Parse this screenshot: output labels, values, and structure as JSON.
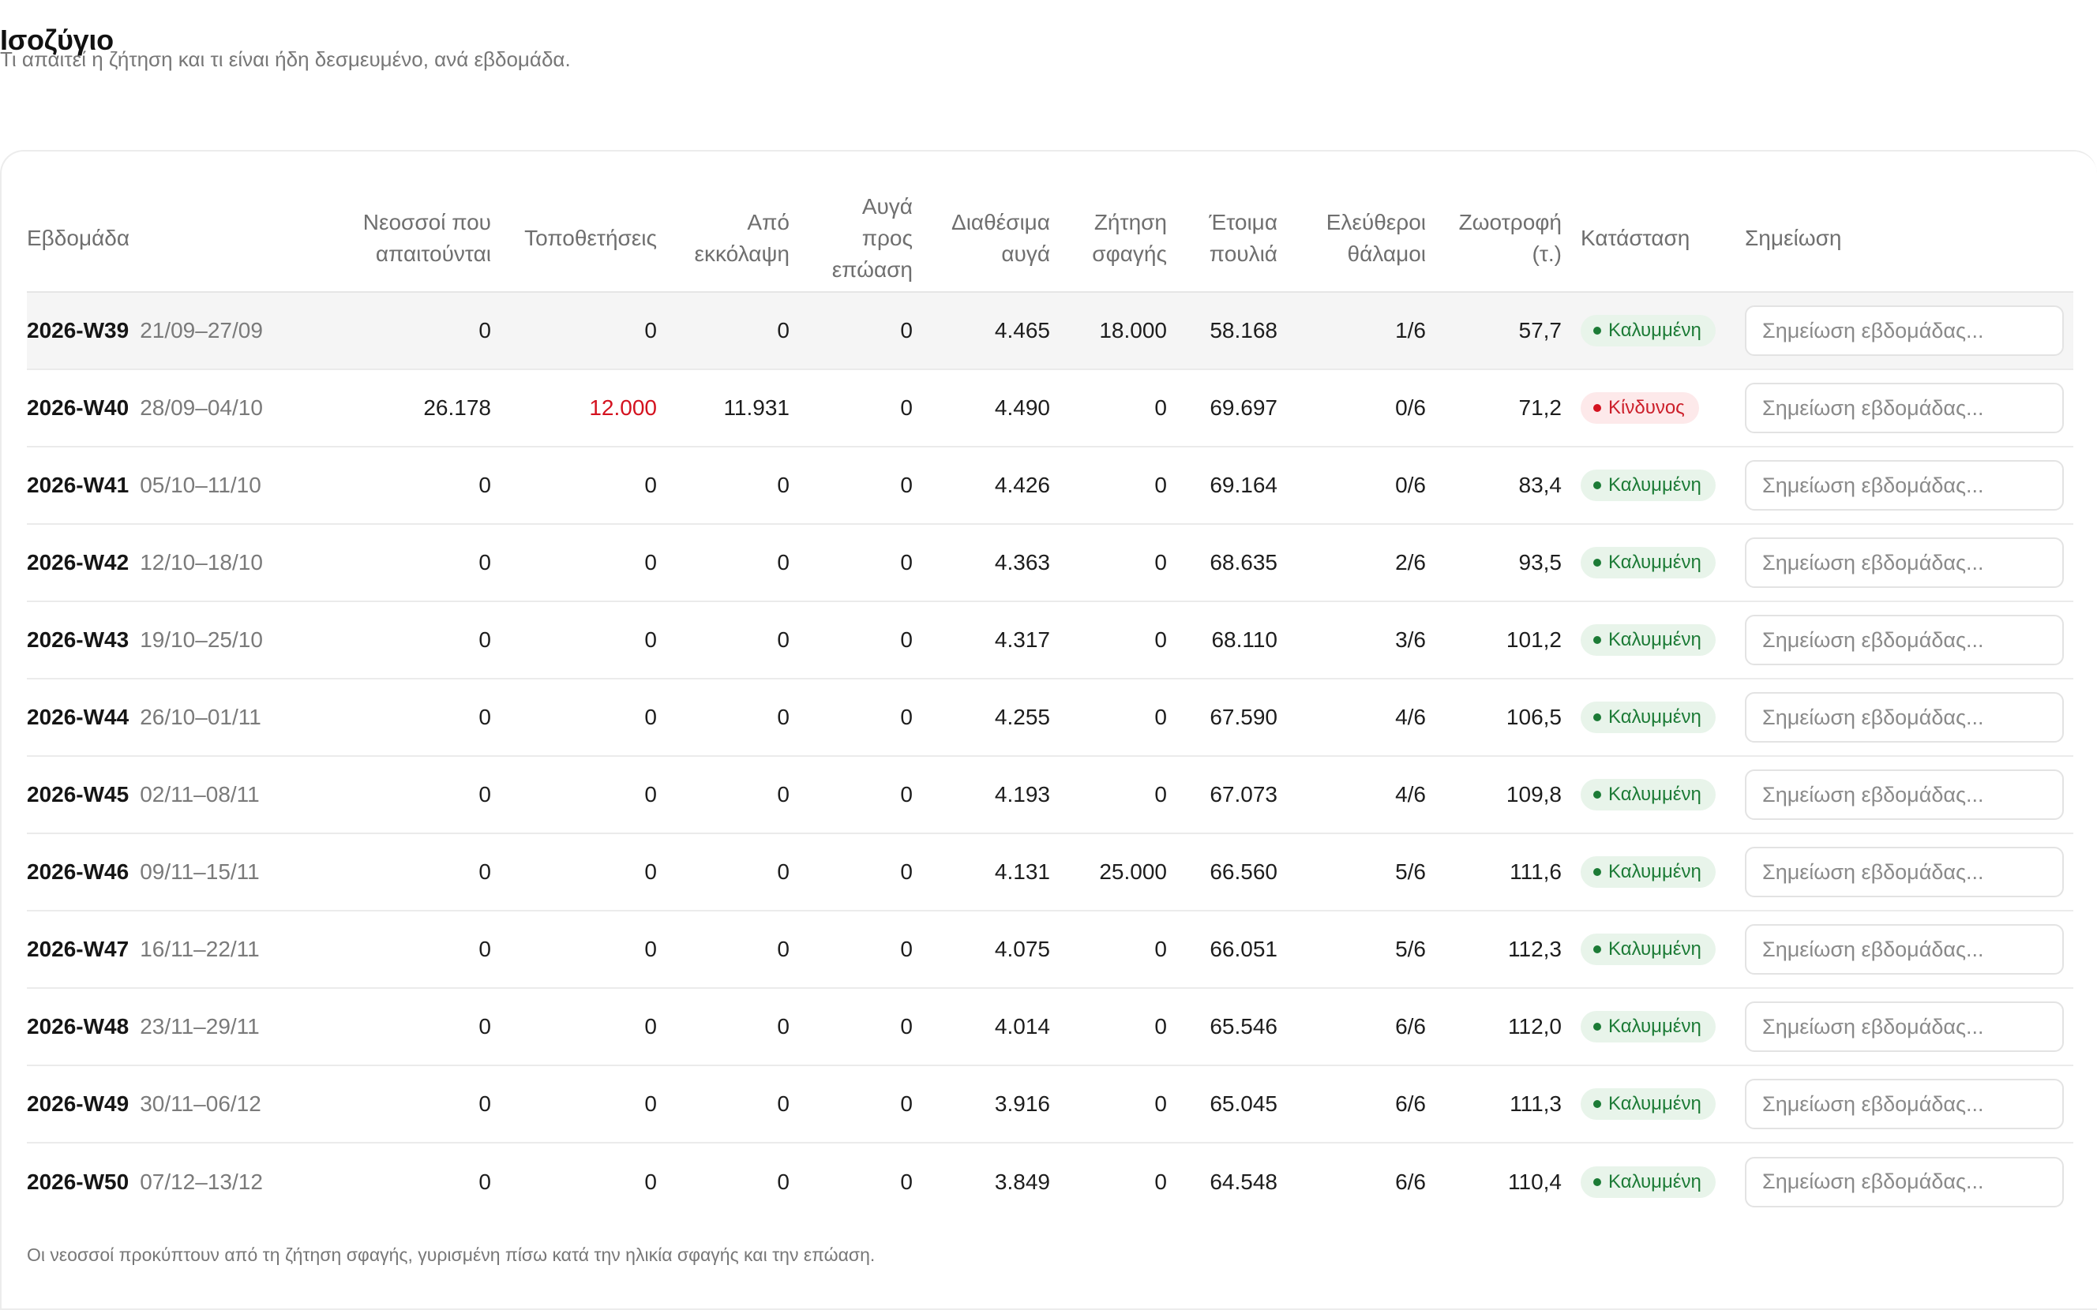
{
  "page": {
    "title": "Ισοζύγιο",
    "subtitle": "Τι απαιτεί η ζήτηση και τι είναι ήδη δεσμευμένο, ανά εβδομάδα."
  },
  "table": {
    "headers": {
      "week": "Εβδομάδα",
      "chicks_required": "Νεοσσοί που απαιτούνται",
      "placements": "Τοποθετήσεις",
      "from_hatch": "Από εκκόλαψη",
      "eggs_to_incubate": "Αυγά προς επώαση",
      "available_eggs": "Διαθέσιμα αυγά",
      "slaughter_demand": "Ζήτηση σφαγής",
      "ready_birds": "Έτοιμα πουλιά",
      "free_houses": "Ελεύθεροι θάλαμοι",
      "feed": "Ζωοτροφή (τ.)",
      "status": "Κατάσταση",
      "note": "Σημείωση"
    },
    "note_placeholder": "Σημείωση εβδομάδας...",
    "status_labels": {
      "ok": "Καλυμμένη",
      "bad": "Κίνδυνος"
    },
    "colors": {
      "danger": "#d4121f",
      "ok": "#1c7b36"
    },
    "rows": [
      {
        "week": "2026-W39",
        "range": "21/09–27/09",
        "chicks_required": "0",
        "placements": "0",
        "from_hatch": "0",
        "eggs_to_incubate": "0",
        "available_eggs": "4.465",
        "slaughter_demand": "18.000",
        "ready_birds": "58.168",
        "free_houses": "1/6",
        "feed": "57,7",
        "status": "Καλυμμένη",
        "status_type": "ok",
        "note": ""
      },
      {
        "week": "2026-W40",
        "range": "28/09–04/10",
        "chicks_required": "26.178",
        "placements": "12.000",
        "from_hatch": "11.931",
        "eggs_to_incubate": "0",
        "available_eggs": "4.490",
        "slaughter_demand": "0",
        "ready_birds": "69.697",
        "free_houses": "0/6",
        "feed": "71,2",
        "status": "Κίνδυνος",
        "status_type": "bad",
        "note": ""
      },
      {
        "week": "2026-W41",
        "range": "05/10–11/10",
        "chicks_required": "0",
        "placements": "0",
        "from_hatch": "0",
        "eggs_to_incubate": "0",
        "available_eggs": "4.426",
        "slaughter_demand": "0",
        "ready_birds": "69.164",
        "free_houses": "0/6",
        "feed": "83,4",
        "status": "Καλυμμένη",
        "status_type": "ok",
        "note": ""
      },
      {
        "week": "2026-W42",
        "range": "12/10–18/10",
        "chicks_required": "0",
        "placements": "0",
        "from_hatch": "0",
        "eggs_to_incubate": "0",
        "available_eggs": "4.363",
        "slaughter_demand": "0",
        "ready_birds": "68.635",
        "free_houses": "2/6",
        "feed": "93,5",
        "status": "Καλυμμένη",
        "status_type": "ok",
        "note": ""
      },
      {
        "week": "2026-W43",
        "range": "19/10–25/10",
        "chicks_required": "0",
        "placements": "0",
        "from_hatch": "0",
        "eggs_to_incubate": "0",
        "available_eggs": "4.317",
        "slaughter_demand": "0",
        "ready_birds": "68.110",
        "free_houses": "3/6",
        "feed": "101,2",
        "status": "Καλυμμένη",
        "status_type": "ok",
        "note": ""
      },
      {
        "week": "2026-W44",
        "range": "26/10–01/11",
        "chicks_required": "0",
        "placements": "0",
        "from_hatch": "0",
        "eggs_to_incubate": "0",
        "available_eggs": "4.255",
        "slaughter_demand": "0",
        "ready_birds": "67.590",
        "free_houses": "4/6",
        "feed": "106,5",
        "status": "Καλυμμένη",
        "status_type": "ok",
        "note": ""
      },
      {
        "week": "2026-W45",
        "range": "02/11–08/11",
        "chicks_required": "0",
        "placements": "0",
        "from_hatch": "0",
        "eggs_to_incubate": "0",
        "available_eggs": "4.193",
        "slaughter_demand": "0",
        "ready_birds": "67.073",
        "free_houses": "4/6",
        "feed": "109,8",
        "status": "Καλυμμένη",
        "status_type": "ok",
        "note": ""
      },
      {
        "week": "2026-W46",
        "range": "09/11–15/11",
        "chicks_required": "0",
        "placements": "0",
        "from_hatch": "0",
        "eggs_to_incubate": "0",
        "available_eggs": "4.131",
        "slaughter_demand": "25.000",
        "ready_birds": "66.560",
        "free_houses": "5/6",
        "feed": "111,6",
        "status": "Καλυμμένη",
        "status_type": "ok",
        "note": ""
      },
      {
        "week": "2026-W47",
        "range": "16/11–22/11",
        "chicks_required": "0",
        "placements": "0",
        "from_hatch": "0",
        "eggs_to_incubate": "0",
        "available_eggs": "4.075",
        "slaughter_demand": "0",
        "ready_birds": "66.051",
        "free_houses": "5/6",
        "feed": "112,3",
        "status": "Καλυμμένη",
        "status_type": "ok",
        "note": ""
      },
      {
        "week": "2026-W48",
        "range": "23/11–29/11",
        "chicks_required": "0",
        "placements": "0",
        "from_hatch": "0",
        "eggs_to_incubate": "0",
        "available_eggs": "4.014",
        "slaughter_demand": "0",
        "ready_birds": "65.546",
        "free_houses": "6/6",
        "feed": "112,0",
        "status": "Καλυμμένη",
        "status_type": "ok",
        "note": ""
      },
      {
        "week": "2026-W49",
        "range": "30/11–06/12",
        "chicks_required": "0",
        "placements": "0",
        "from_hatch": "0",
        "eggs_to_incubate": "0",
        "available_eggs": "3.916",
        "slaughter_demand": "0",
        "ready_birds": "65.045",
        "free_houses": "6/6",
        "feed": "111,3",
        "status": "Καλυμμένη",
        "status_type": "ok",
        "note": ""
      },
      {
        "week": "2026-W50",
        "range": "07/12–13/12",
        "chicks_required": "0",
        "placements": "0",
        "from_hatch": "0",
        "eggs_to_incubate": "0",
        "available_eggs": "3.849",
        "slaughter_demand": "0",
        "ready_birds": "64.548",
        "free_houses": "6/6",
        "feed": "110,4",
        "status": "Καλυμμένη",
        "status_type": "ok",
        "note": ""
      }
    ],
    "highlight_row": 0,
    "danger_cells": [
      {
        "row": 1,
        "key": "placements"
      }
    ]
  },
  "footnote": "Οι νεοσσοί προκύπτουν από τη ζήτηση σφαγής, γυρισμένη πίσω κατά την ηλικία σφαγής και την επώαση."
}
